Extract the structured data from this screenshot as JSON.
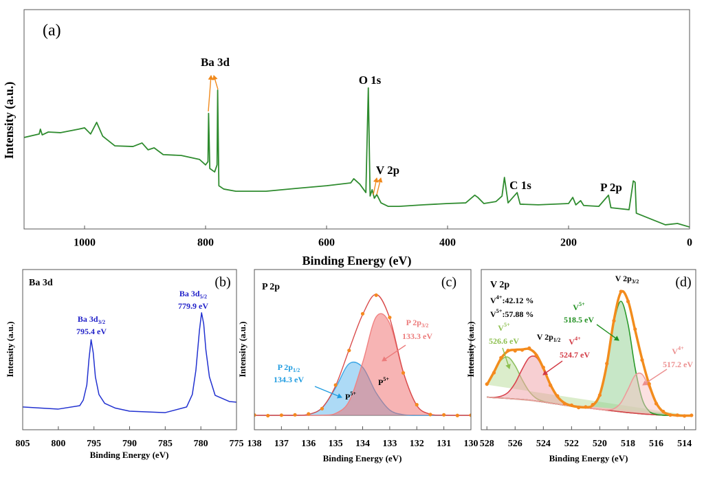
{
  "chart_data": [
    {
      "type": "line",
      "xlabel": "Binding Energy (eV)",
      "ylabel": "Intensity (a.u.)",
      "xlim": [
        1100,
        0
      ],
      "xticks": [
        1000,
        800,
        600,
        400,
        200,
        0
      ],
      "ylim": [
        0,
        100
      ],
      "grid": false,
      "x": [
        1100,
        1075,
        1073,
        1070,
        1060,
        1040,
        1010,
        1000,
        990,
        980,
        970,
        950,
        920,
        905,
        895,
        885,
        870,
        840,
        810,
        800,
        796,
        795,
        793,
        785,
        781,
        780,
        778,
        770,
        750,
        700,
        650,
        600,
        560,
        555,
        545,
        535,
        531,
        528,
        524.7,
        521,
        517,
        510,
        498,
        480,
        440,
        400,
        370,
        355,
        350,
        340,
        320,
        310,
        306,
        300,
        285,
        280,
        250,
        200,
        193,
        188,
        180,
        175,
        150,
        134,
        130,
        100,
        93,
        90,
        88,
        60,
        40,
        20,
        0
      ],
      "series": [
        {
          "color": "#2e8b2e",
          "values": [
            41.7,
            43.3,
            45.5,
            42.9,
            44.2,
            43.9,
            45.5,
            46.1,
            43.3,
            48.6,
            42.3,
            37.9,
            37.6,
            39.2,
            36.1,
            37.0,
            33.9,
            33.5,
            31.7,
            29.2,
            30.7,
            52.7,
            27.6,
            26.0,
            29.2,
            63.3,
            19.7,
            18.2,
            17.2,
            17.2,
            18.5,
            19.7,
            21.0,
            22.9,
            20.4,
            16.6,
            64.3,
            15.0,
            17.9,
            14.0,
            15.7,
            11.9,
            10.3,
            10.3,
            11.0,
            11.6,
            11.9,
            15.4,
            14.4,
            11.6,
            12.5,
            15.0,
            23.5,
            11.9,
            16.6,
            11.3,
            11.0,
            11.6,
            14.4,
            11.0,
            12.9,
            10.7,
            10.3,
            15.4,
            9.7,
            8.8,
            21.9,
            21.3,
            7.2,
            4.1,
            1.9,
            2.5,
            0.9
          ]
        }
      ],
      "annotations": [
        {
          "text": "(a)"
        },
        {
          "text": "Ba 3d"
        },
        {
          "text": "O 1s"
        },
        {
          "text": "V 2p"
        },
        {
          "text": "C 1s"
        },
        {
          "text": "P 2p"
        }
      ]
    },
    {
      "type": "line",
      "xlabel": "Binding Energy (eV)",
      "ylabel": "Intensity (a.u.)",
      "xlim": [
        805,
        775
      ],
      "xticks": [
        805,
        800,
        795,
        790,
        785,
        780,
        775
      ],
      "ylim": [
        0,
        100
      ],
      "grid": false,
      "x": [
        805,
        800,
        797,
        796.5,
        796,
        795.7,
        795.4,
        795.1,
        794.8,
        794.3,
        793.5,
        792,
        790,
        785,
        782,
        781.2,
        780.7,
        780.2,
        779.9,
        779.6,
        779.3,
        778.8,
        778,
        776,
        775
      ],
      "series": [
        {
          "color": "#2030d0",
          "values": [
            14.2,
            12.9,
            15.0,
            18.5,
            28.0,
            44.0,
            56.2,
            48.0,
            33.0,
            22.0,
            16.5,
            13.5,
            11.6,
            10.7,
            14.2,
            22.0,
            37.0,
            62.0,
            73.0,
            66.0,
            50.0,
            33.0,
            21.5,
            17.6,
            17.2
          ]
        }
      ],
      "annotations": [
        {
          "text": "Ba 3d"
        },
        {
          "text": "(b)"
        },
        {
          "parts": [
            {
              "text": "Ba 3d"
            },
            {
              "sub": "3/2"
            }
          ],
          "color": "#2020c8"
        },
        {
          "text": "795.4 eV",
          "color": "#2020c8"
        },
        {
          "parts": [
            {
              "text": "Ba 3d"
            },
            {
              "sub": "5/2"
            }
          ],
          "color": "#2020c8"
        },
        {
          "text": "779.9 eV",
          "color": "#2020c8"
        }
      ]
    },
    {
      "type": "line",
      "xlabel": "Binding Energy (eV)",
      "ylabel": "Intensity (a.u.)",
      "xlim": [
        138,
        130
      ],
      "xticks": [
        138,
        137,
        136,
        135,
        134,
        133,
        132,
        131,
        130
      ],
      "ylim": [
        0,
        100
      ],
      "grid": false,
      "x": [
        138,
        137.5,
        137,
        136.5,
        136,
        135.5,
        135,
        134.5,
        134,
        133.5,
        133,
        132.5,
        132,
        131.5,
        131,
        130.5,
        130
      ],
      "series": [
        {
          "color": "#8c8c8c",
          "values": [
            9,
            9,
            9,
            9,
            9,
            9,
            9,
            9,
            9,
            9,
            9,
            9,
            9,
            9,
            9,
            9,
            9
          ]
        },
        {
          "color": "#3aa6e6",
          "fill": "#5cb6ee",
          "values": [
            9,
            9,
            9,
            9,
            9.6,
            13.6,
            26.2,
            41.2,
            39.0,
            23.0,
            12.3,
            9.4,
            9,
            9,
            9,
            9,
            9
          ]
        },
        {
          "color": "#f08080",
          "fill": "#f06a6a",
          "values": [
            9,
            9,
            9,
            9,
            9,
            9.1,
            10.2,
            17.8,
            41.9,
            70.5,
            66.3,
            35.7,
            15.2,
            9.7,
            9.1,
            9,
            9
          ]
        },
        {
          "color": "#d94b4b",
          "values": [
            9,
            9,
            9,
            9,
            9.6,
            13.7,
            27.4,
            50.0,
            71.9,
            84.5,
            69.6,
            36.1,
            15.2,
            9.7,
            9.1,
            9,
            9
          ]
        },
        {
          "color": "#f5891f",
          "style": "markers",
          "values": [
            9.2,
            8.8,
            9.1,
            9.3,
            9.9,
            13.2,
            27.9,
            49.5,
            72.4,
            84.0,
            70.1,
            35.5,
            15.6,
            9.5,
            9.3,
            8.9,
            9.1
          ]
        }
      ],
      "annotations": [
        {
          "text": "P 2p"
        },
        {
          "text": "(c)"
        },
        {
          "parts": [
            {
              "text": "P 2p"
            },
            {
              "sub": "3/2"
            }
          ],
          "color": "#ec7b7b"
        },
        {
          "text": "133.3 eV",
          "color": "#ec7b7b"
        },
        {
          "parts": [
            {
              "text": "P 2p"
            },
            {
              "sub": "1/2"
            }
          ],
          "color": "#1e9be0"
        },
        {
          "text": "134.3 eV",
          "color": "#1e9be0"
        },
        {
          "parts": [
            {
              "text": "P"
            },
            {
              "sup": "5+"
            }
          ]
        },
        {
          "parts": [
            {
              "text": "P"
            },
            {
              "sup": "5+"
            }
          ]
        }
      ]
    },
    {
      "type": "line",
      "xlabel": "Binding Energy (eV)",
      "ylabel": "Intensity (a.u.)",
      "xlim": [
        528.4,
        513.2
      ],
      "xticks": [
        528,
        526,
        524,
        522,
        520,
        518,
        516,
        514
      ],
      "ylim": [
        0,
        100
      ],
      "grid": false,
      "x": [
        528,
        527.5,
        527,
        526.5,
        526,
        525.5,
        525,
        524.5,
        524,
        523.5,
        523,
        522.5,
        522,
        521.5,
        521,
        520.5,
        520,
        519.5,
        519,
        518.5,
        518,
        517.5,
        517,
        516.5,
        516,
        515.5,
        515,
        514.5,
        514,
        513.5
      ],
      "series": [
        {
          "color": "#8a6e6e",
          "values": [
            20.4,
            20.0,
            19.8,
            19.5,
            19.2,
            18.9,
            18.5,
            17.9,
            17.3,
            16.6,
            16.0,
            15.3,
            14.7,
            14.2,
            13.7,
            13.2,
            12.7,
            12.2,
            11.7,
            11.2,
            10.7,
            10.3,
            9.9,
            9.6,
            9.3,
            9.1,
            9.0,
            8.9,
            8.8,
            8.8
          ]
        },
        {
          "color": "#8fc060",
          "fill": "#b8dc98",
          "values": [
            28.1,
            35.8,
            43.4,
            45.3,
            40.0,
            31.2,
            23.9,
            19.6,
            17.7,
            16.7,
            16.0,
            15.3,
            14.7,
            14.2,
            13.7,
            13.2,
            12.7,
            12.2,
            11.7,
            11.2,
            10.7,
            10.3,
            9.9,
            9.6,
            9.3,
            9.1,
            9.0,
            8.9,
            8.8,
            8.8
          ]
        },
        {
          "color": "#d9434d",
          "fill": "#f0a0a5",
          "values": [
            20.4,
            20.2,
            20.9,
            23.3,
            29.1,
            37.8,
            45.0,
            45.2,
            38.0,
            28.1,
            20.7,
            16.7,
            15.0,
            14.2,
            13.7,
            13.2,
            12.7,
            12.2,
            11.7,
            11.2,
            10.7,
            10.3,
            9.9,
            9.6,
            9.3,
            9.1,
            9.0,
            8.9,
            8.8,
            8.8
          ]
        },
        {
          "color": "#2a9a2a",
          "fill": "#8fd08f",
          "values": [
            20.4,
            20.0,
            19.8,
            19.5,
            19.2,
            18.9,
            18.5,
            17.9,
            17.3,
            16.6,
            16.0,
            15.3,
            14.7,
            14.2,
            14.0,
            15.2,
            22.0,
            40.6,
            67.0,
            80.2,
            66.0,
            38.7,
            19.2,
            11.6,
            9.6,
            9.1,
            9.0,
            8.9,
            8.8,
            8.8
          ]
        },
        {
          "color": "#ee9a9a",
          "fill": "#f7c4c4",
          "values": [
            20.4,
            20.0,
            19.8,
            19.5,
            19.2,
            18.9,
            18.5,
            17.9,
            17.3,
            16.6,
            16.0,
            15.3,
            14.7,
            14.2,
            13.7,
            13.2,
            12.7,
            12.4,
            13.1,
            16.9,
            25.2,
            33.9,
            34.6,
            26.2,
            16.4,
            11.1,
            9.4,
            8.9,
            8.8,
            8.8
          ]
        },
        {
          "color": "#f28c1c",
          "values": [
            28.1,
            36.0,
            44.5,
            49.1,
            49.9,
            50.1,
            50.4,
            46.9,
            38.4,
            28.2,
            20.7,
            16.7,
            15.0,
            14.2,
            14.0,
            15.2,
            22.0,
            40.8,
            68.4,
            85.9,
            80.5,
            62.3,
            43.9,
            28.2,
            16.7,
            11.1,
            9.4,
            8.9,
            8.8,
            8.8
          ]
        },
        {
          "color": "#f5891f",
          "style": "markers",
          "values": [
            28.5,
            35.6,
            44.9,
            49.4,
            49.3,
            49.8,
            50.9,
            46.4,
            38.9,
            27.8,
            21.1,
            16.4,
            15.3,
            13.9,
            14.2,
            15.6,
            21.6,
            41.3,
            68.0,
            86.3,
            80.1,
            62.8,
            43.5,
            28.6,
            16.3,
            11.4,
            9.2,
            9.1,
            8.6,
            9.0
          ]
        }
      ],
      "annotations": [
        {
          "text": "V 2p"
        },
        {
          "text": "(d)"
        },
        {
          "parts": [
            {
              "text": "V"
            },
            {
              "sup": "4+"
            },
            {
              "text": ":42.12 %"
            }
          ]
        },
        {
          "parts": [
            {
              "text": "V"
            },
            {
              "sup": "5+"
            },
            {
              "text": ":57.88 %"
            }
          ]
        },
        {
          "parts": [
            {
              "text": "V 2p"
            },
            {
              "sub": "3/2"
            }
          ]
        },
        {
          "parts": [
            {
              "text": "V"
            },
            {
              "sup": "5+"
            }
          ],
          "color": "#1f8f1f"
        },
        {
          "text": "518.5 eV",
          "color": "#1f8f1f"
        },
        {
          "parts": [
            {
              "text": "V"
            },
            {
              "sup": "5+"
            }
          ],
          "color": "#8cbf4e"
        },
        {
          "text": "526.6 eV",
          "color": "#8cbf4e"
        },
        {
          "parts": [
            {
              "text": "V 2p"
            },
            {
              "sub": "1/2"
            }
          ]
        },
        {
          "parts": [
            {
              "text": "V"
            },
            {
              "sup": "4+"
            }
          ],
          "color": "#d23a44"
        },
        {
          "text": "524.7 eV",
          "color": "#d23a44"
        },
        {
          "parts": [
            {
              "text": "V"
            },
            {
              "sup": "4+"
            }
          ],
          "color": "#ec8f8f"
        },
        {
          "text": "517.2 eV",
          "color": "#ec8f8f"
        }
      ]
    }
  ]
}
